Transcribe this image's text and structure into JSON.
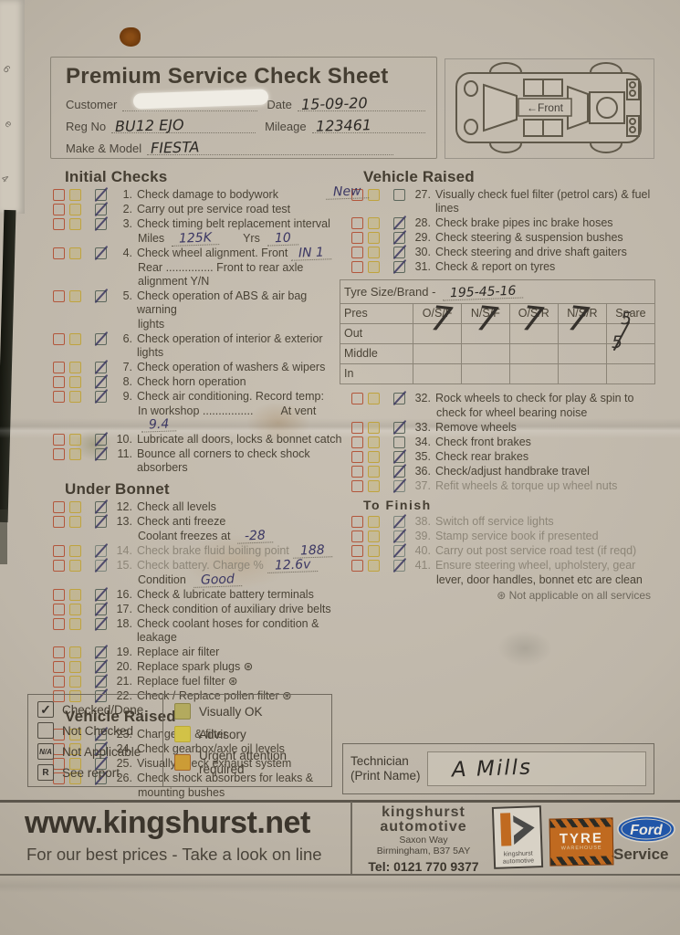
{
  "header": {
    "title": "Premium Service Check Sheet",
    "customer_label": "Customer",
    "date_label": "Date",
    "date_value": "15-09-20",
    "reg_label": "Reg No",
    "reg_value": "BU12 EJO",
    "mileage_label": "Mileage",
    "mileage_value": "123461",
    "make_label": "Make & Model",
    "make_value": "FIESTA",
    "front_label": "←Front"
  },
  "sections": {
    "initial": {
      "heading": "Initial Checks",
      "items": [
        {
          "n": "1.",
          "t": "Check damage to bodywork",
          "ticked": true
        },
        {
          "n": "2.",
          "t": "Carry out pre service road test",
          "ticked": true
        },
        {
          "n": "3.",
          "t": "Check timing belt replacement interval",
          "ticked": true,
          "l2a": "Miles",
          "l2a_hw": "125K",
          "l2b": "Yrs",
          "l2b_hw": "10"
        },
        {
          "n": "4.",
          "t": "Check wheel alignment. Front",
          "t_hw": "IN 1",
          "l2": "Rear ............... Front to rear axle alignment Y/N",
          "ticked": true
        },
        {
          "n": "5.",
          "t": "Check operation of ABS & air bag warning",
          "l2": "lights",
          "ticked": true
        },
        {
          "n": "6.",
          "t": "Check operation of interior & exterior lights",
          "ticked": true
        },
        {
          "n": "7.",
          "t": "Check operation of washers & wipers",
          "ticked": true
        },
        {
          "n": "8.",
          "t": "Check horn operation",
          "ticked": true
        },
        {
          "n": "9.",
          "t": "Check air conditioning. Record temp:",
          "l2a": "In workshop ................",
          "l2b": "At vent",
          "l2b_hw": "9.4",
          "ticked": true
        },
        {
          "n": "10.",
          "t": "Lubricate all doors, locks & bonnet catch",
          "ticked": true
        },
        {
          "n": "11.",
          "t": "Bounce all corners to check shock absorbers",
          "ticked": true
        }
      ]
    },
    "under_bonnet": {
      "heading": "Under Bonnet",
      "items": [
        {
          "n": "12.",
          "t": "Check all levels",
          "ticked": true
        },
        {
          "n": "13.",
          "t": "Check anti freeze",
          "l2a": "Coolant freezes at",
          "l2a_hw": "-28",
          "ticked": true
        },
        {
          "n": "14.",
          "t": "Check brake fluid boiling point",
          "t_hw": "188",
          "ticked": true,
          "faint": true
        },
        {
          "n": "15.",
          "t": "Check battery. Charge %",
          "t_hw": "12.6v",
          "l2a": "Condition",
          "l2a_hw": "Good",
          "ticked": true,
          "faint": true
        },
        {
          "n": "16.",
          "t": "Check & lubricate battery terminals",
          "ticked": true
        },
        {
          "n": "17.",
          "t": "Check condition of auxiliary drive belts",
          "ticked": true
        },
        {
          "n": "18.",
          "t": "Check coolant hoses for condition & leakage",
          "ticked": true
        },
        {
          "n": "19.",
          "t": "Replace air filter",
          "ticked": true
        },
        {
          "n": "20.",
          "t": "Replace spark plugs ⊛",
          "ticked": true
        },
        {
          "n": "21.",
          "t": "Replace fuel filter ⊛",
          "ticked": true
        },
        {
          "n": "22.",
          "t": "Check / Replace pollen filter ⊛",
          "ticked": true
        }
      ]
    },
    "vehicle_raised_left": {
      "heading": "Vehicle Raised",
      "items": [
        {
          "n": "23.",
          "t": "Change oil & filter",
          "ticked": true
        },
        {
          "n": "24.",
          "t": "Check gearbox/axle oil levels",
          "ticked": true
        },
        {
          "n": "25.",
          "t": "Visually check exhaust system",
          "ticked": true
        },
        {
          "n": "26.",
          "t": "Check shock absorbers for leaks &",
          "l2": "mounting bushes",
          "ticked": true
        }
      ]
    },
    "vehicle_raised_right": {
      "heading": "Vehicle Raised",
      "items": [
        {
          "n": "27.",
          "pre_hw": "New",
          "t": "Visually check fuel filter (petrol cars) & fuel lines",
          "ticked": false
        },
        {
          "n": "28.",
          "t": "Check brake pipes inc brake hoses",
          "ticked": true
        },
        {
          "n": "29.",
          "t": "Check steering & suspension bushes",
          "ticked": true
        },
        {
          "n": "30.",
          "t": "Check steering and drive shaft gaiters",
          "ticked": true
        },
        {
          "n": "31.",
          "t": "Check & report on tyres",
          "ticked": true
        }
      ]
    },
    "after_table": {
      "items": [
        {
          "n": "32.",
          "t": "Rock wheels to check for play & spin to",
          "l2": "check for wheel bearing noise",
          "ticked": true
        },
        {
          "n": "33.",
          "t": "Remove wheels",
          "ticked": true
        },
        {
          "n": "34.",
          "t": "Check front brakes",
          "ticked": false
        },
        {
          "n": "35.",
          "t": "Check rear brakes",
          "ticked": true
        },
        {
          "n": "36.",
          "t": "Check/adjust handbrake travel",
          "ticked": true
        },
        {
          "n": "37.",
          "t": "Refit wheels & torque up wheel nuts",
          "ticked": true,
          "faint": true
        }
      ]
    },
    "to_finish": {
      "heading": "To Finish",
      "items": [
        {
          "n": "38.",
          "t": "Switch off service lights",
          "ticked": true,
          "faint": true
        },
        {
          "n": "39.",
          "t": "Stamp service book if presented",
          "ticked": true,
          "faint": true
        },
        {
          "n": "40.",
          "t": "Carry out post service road test (if reqd)",
          "ticked": true,
          "faint": true
        },
        {
          "n": "41.",
          "t": "Ensure steering wheel, upholstery, gear",
          "l2": "lever, door handles, bonnet etc are clean",
          "ticked": true,
          "faint": true
        }
      ],
      "note": "⊛   Not applicable on all services"
    }
  },
  "tyre_table": {
    "size_label": "Tyre Size/Brand -",
    "size_value": "195-45-16",
    "pressure_header": "Pres",
    "cols": [
      "O/S/F",
      "N/S/F",
      "O/S/R",
      "N/S/R",
      "Spare"
    ],
    "rows": [
      "Out",
      "Middle",
      "In"
    ],
    "values": {
      "osf": "7",
      "nsf": "7",
      "osr": "7",
      "nsr": "7",
      "spare_top": "5",
      "spare_bottom": "5"
    }
  },
  "legend": {
    "check_glyph": "✓",
    "na_text": "N/A",
    "r_text": "R",
    "items_left": [
      {
        "label": "Checked/Done"
      },
      {
        "label": "Not Checked"
      },
      {
        "label": "Not Applicable"
      },
      {
        "label": "See report"
      }
    ],
    "items_right": [
      {
        "label": "Visually OK",
        "color": "#b3aa5e"
      },
      {
        "label": "Advisory",
        "color": "#d2c247"
      },
      {
        "label": "Urgent attention required",
        "color": "#cc9c36"
      }
    ]
  },
  "technician": {
    "label1": "Technician",
    "label2": "(Print Name)",
    "value": "A Mills"
  },
  "footer": {
    "url": "www.kingshurst.net",
    "tagline": "For our best prices - Take a look on line",
    "company_line1": "kingshurst",
    "company_line2": "automotive",
    "address1": "Saxon Way",
    "address2": "Birmingham, B37 5AY",
    "tel": "Tel: 0121 770 9377",
    "klogo_text1": "kingshurst",
    "klogo_text2": "automotive",
    "tyre_logo_text": "TYRE",
    "tyre_logo_sub": "WAREHOUSE",
    "ford_text": "Ford",
    "ford_service": "Service"
  },
  "colors": {
    "checkbox_red": "#b2563b",
    "checkbox_yellow": "#bfa33e",
    "tick_pen": "#3b3760",
    "visually_ok": "#b3aa5e",
    "advisory": "#d2c247",
    "urgent": "#cc9c36",
    "ford_blue": "#2156a8",
    "logo_orange": "#c06a20"
  }
}
